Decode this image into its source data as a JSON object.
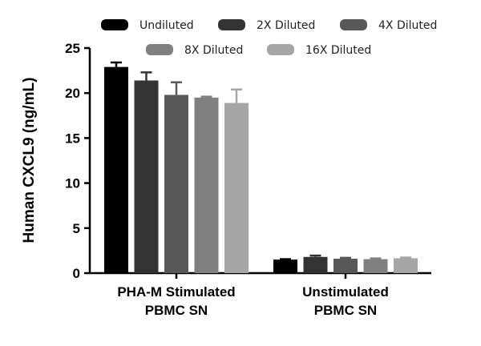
{
  "chart_data": {
    "type": "bar",
    "title": "",
    "xlabel": "",
    "ylabel": "Human CXCL9 (ng/mL)",
    "ylim": [
      0,
      25
    ],
    "yticks": [
      0,
      5,
      10,
      15,
      20,
      25
    ],
    "categories": [
      [
        "PHA-M Stimulated",
        "PBMC SN"
      ],
      [
        "Unstimulated",
        "PBMC SN"
      ]
    ],
    "legend_position": "top",
    "grid": false,
    "series": [
      {
        "name": "Undiluted",
        "color": "#000000",
        "values": [
          22.9,
          1.5
        ],
        "errors": [
          0.5,
          0.05
        ]
      },
      {
        "name": "2X Diluted",
        "color": "#333333",
        "values": [
          21.4,
          1.8
        ],
        "errors": [
          0.9,
          0.15
        ]
      },
      {
        "name": "4X Diluted",
        "color": "#585858",
        "values": [
          19.8,
          1.6
        ],
        "errors": [
          1.4,
          0.1
        ]
      },
      {
        "name": "8X Diluted",
        "color": "#808080",
        "values": [
          19.5,
          1.55
        ],
        "errors": [
          0.1,
          0.08
        ]
      },
      {
        "name": "16X Diluted",
        "color": "#a6a6a6",
        "values": [
          18.9,
          1.65
        ],
        "errors": [
          1.5,
          0.08
        ]
      }
    ]
  }
}
